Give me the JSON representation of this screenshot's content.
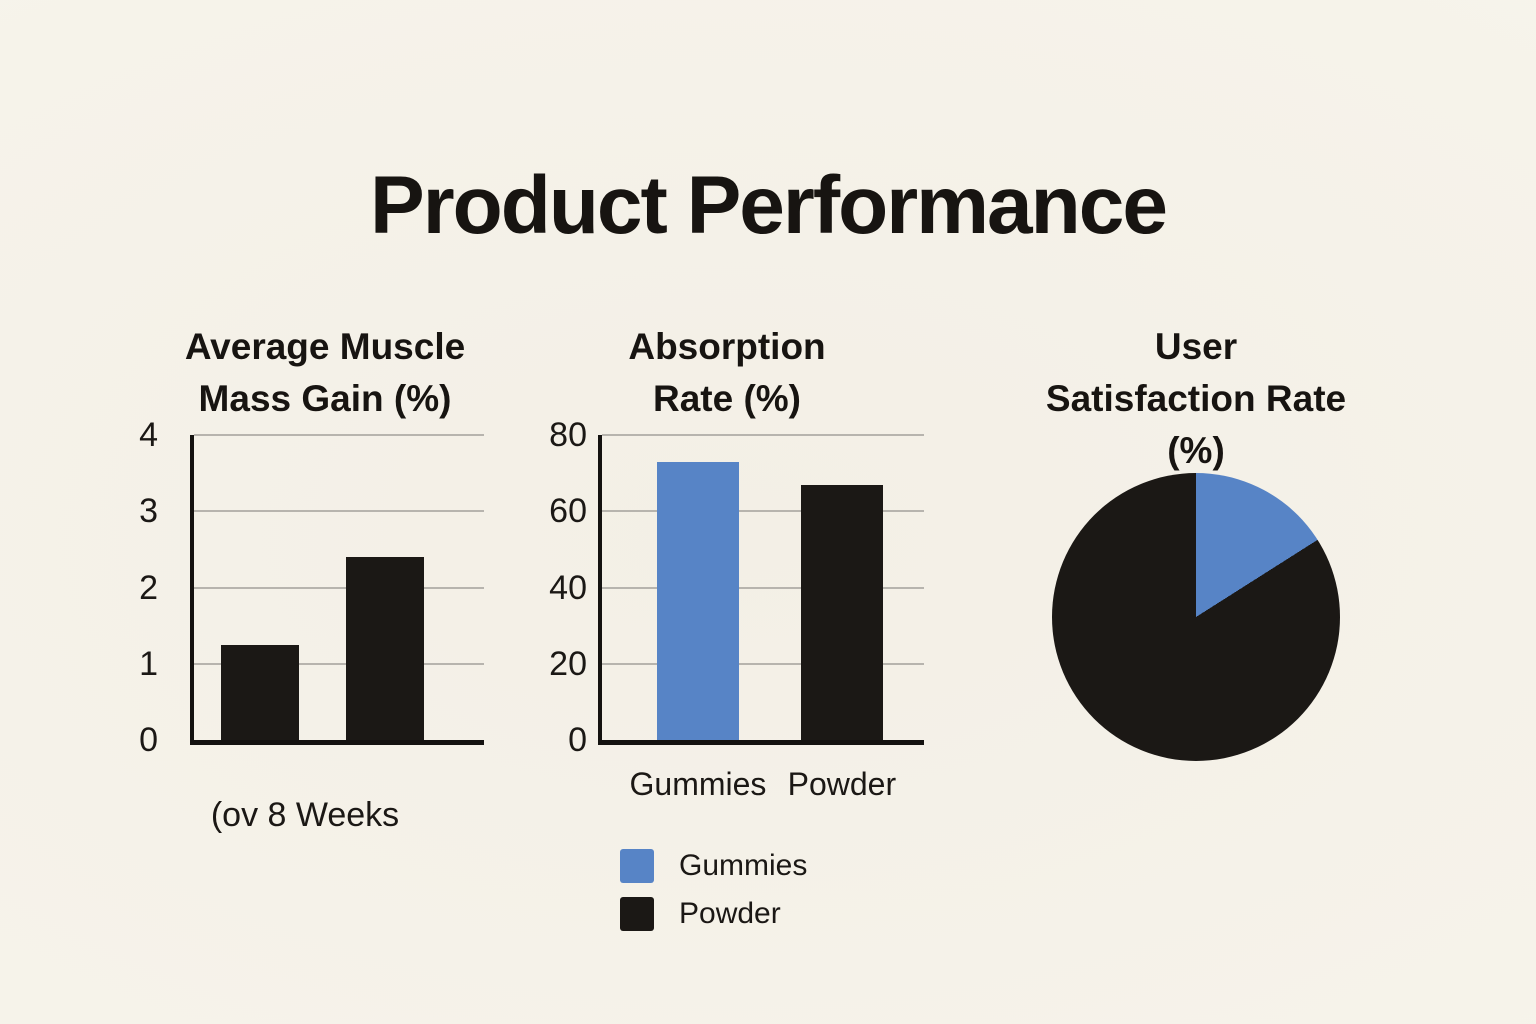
{
  "title": "Product Performance",
  "colors": {
    "background": "#f6f3ea",
    "ink": "#1b1815",
    "blue": "#5784c6",
    "gridline": "#b7b4ae"
  },
  "legend": {
    "items": [
      {
        "label": "Gummies",
        "color": "#5784c6"
      },
      {
        "label": "Powder",
        "color": "#1b1815"
      }
    ]
  },
  "chart_data": [
    {
      "type": "bar",
      "title": "Average Muscle Mass Gain (%)",
      "title_display": "Average Muscle\nMass Gain (%)",
      "xlabel": "(ov 8 Weeks",
      "categories": [],
      "values": [
        1.25,
        2.4
      ],
      "bar_colors": [
        "#1b1815",
        "#1b1815"
      ],
      "ylim": [
        0,
        4
      ],
      "yticks": [
        0,
        1,
        2,
        3,
        4
      ],
      "grid": true,
      "legend_position": "none"
    },
    {
      "type": "bar",
      "title": "Absorption Rate (%)",
      "title_display": "Absorption\nRate (%)",
      "xlabel": "",
      "categories": [
        "Gummies",
        "Powder"
      ],
      "values": [
        73,
        67
      ],
      "bar_colors": [
        "#5784c6",
        "#1b1815"
      ],
      "ylim": [
        0,
        80
      ],
      "yticks": [
        0,
        20,
        40,
        60,
        80
      ],
      "grid": true,
      "legend_position": "below"
    },
    {
      "type": "pie",
      "title": "User Satisfaction Rate (%)",
      "title_display": "User\nSatisfaction Rate\n(%)",
      "start": "12-o'clock clockwise",
      "slices": [
        {
          "label": "Gummies",
          "value": 16,
          "color": "#5784c6"
        },
        {
          "label": "Powder",
          "value": 84,
          "color": "#1b1815"
        }
      ]
    }
  ]
}
